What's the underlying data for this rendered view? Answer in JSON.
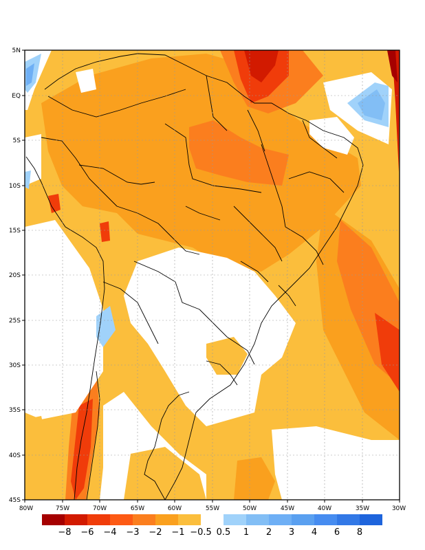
{
  "map": {
    "latitude_labels": [
      "5N",
      "EQ",
      "5S",
      "10S",
      "15S",
      "20S",
      "25S",
      "30S",
      "35S",
      "40S",
      "45S"
    ],
    "longitude_labels": [
      "80W",
      "75W",
      "70W",
      "65W",
      "60W",
      "55W",
      "50W",
      "45W",
      "40W",
      "35W",
      "30W"
    ]
  },
  "colorbar": {
    "negative": [
      {
        "label": "−8",
        "color": "#a50000"
      },
      {
        "label": "−6",
        "color": "#d21a00"
      },
      {
        "label": "−4",
        "color": "#f03c0a"
      },
      {
        "label": "−3",
        "color": "#fd5a14"
      },
      {
        "label": "−2",
        "color": "#fb7e1e"
      },
      {
        "label": "−1",
        "color": "#faa01e"
      },
      {
        "label": "−0.5",
        "color": "#fbbe3c"
      }
    ],
    "positive": [
      {
        "label": "0.5",
        "color": "#a0d2fa"
      },
      {
        "label": "1",
        "color": "#82bef5"
      },
      {
        "label": "2",
        "color": "#6eaff5"
      },
      {
        "label": "3",
        "color": "#5aa0f0"
      },
      {
        "label": "4",
        "color": "#468cf0"
      },
      {
        "label": "6",
        "color": "#3278e6"
      },
      {
        "label": "8",
        "color": "#1e64dc"
      }
    ]
  }
}
